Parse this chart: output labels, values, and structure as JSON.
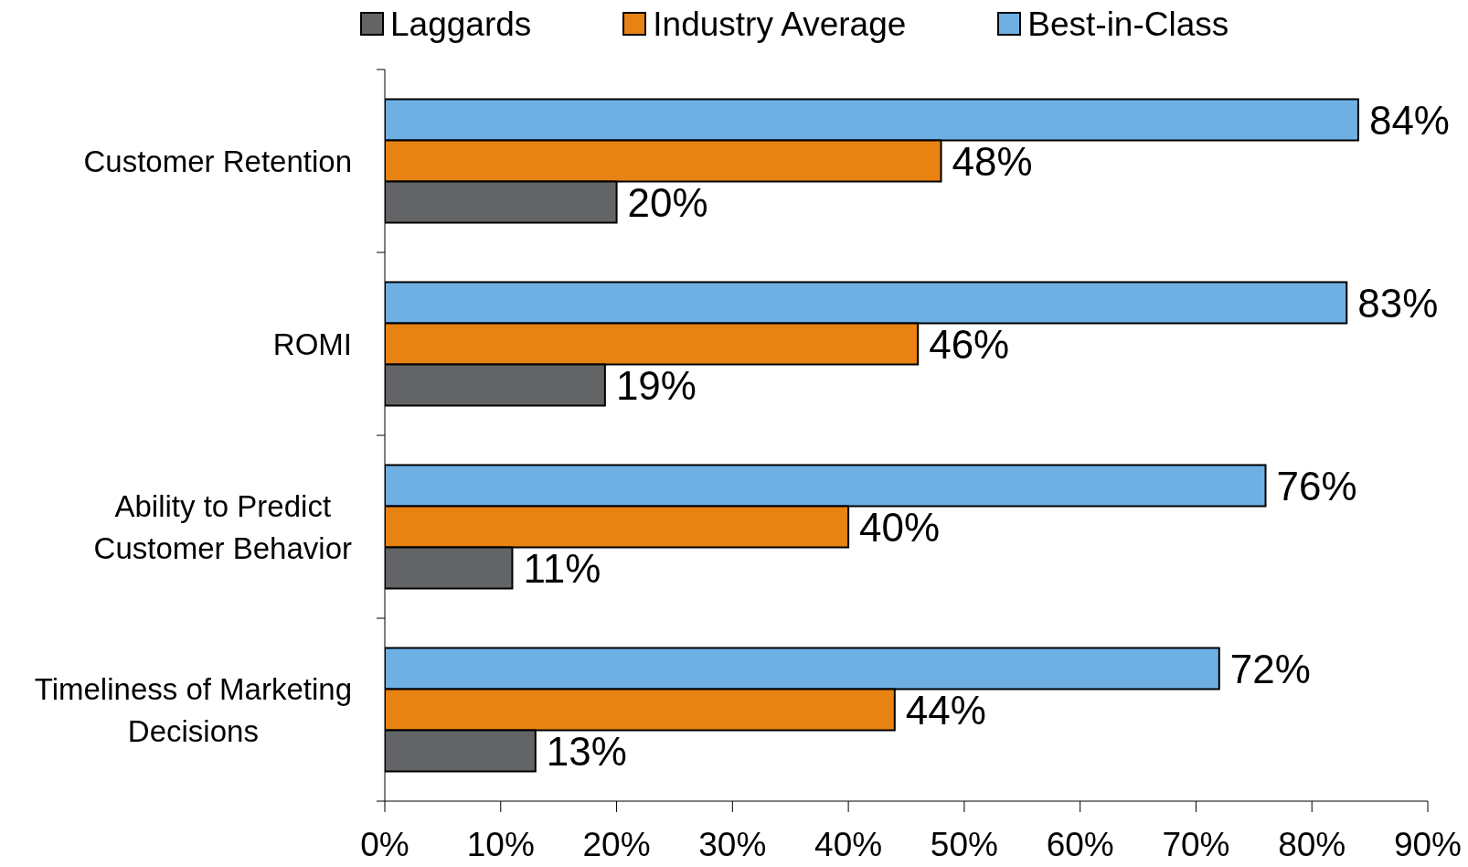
{
  "chart_data": {
    "type": "bar",
    "orientation": "horizontal",
    "legend": "top",
    "categories": [
      "Customer Retention",
      "ROMI",
      "Ability to Predict Customer Behavior",
      "Timeliness of Marketing Decisions"
    ],
    "series": [
      {
        "name": "Laggards",
        "color": "#636466",
        "values": [
          20,
          19,
          11,
          13
        ],
        "value_labels": [
          "20%",
          "19%",
          "11%",
          "13%"
        ]
      },
      {
        "name": "Industry Average",
        "color": "#e88213",
        "values": [
          48,
          46,
          40,
          44
        ],
        "value_labels": [
          "48%",
          "46%",
          "40%",
          "44%"
        ]
      },
      {
        "name": "Best-in-Class",
        "color": "#6fb0e4",
        "values": [
          84,
          83,
          76,
          72
        ],
        "value_labels": [
          "84%",
          "83%",
          "76%",
          "72%"
        ]
      }
    ],
    "xlim": [
      0,
      90
    ],
    "xticks": [
      {
        "value": 0,
        "label": "0%"
      },
      {
        "value": 10,
        "label": "10%"
      },
      {
        "value": 20,
        "label": "20%"
      },
      {
        "value": 30,
        "label": "30%"
      },
      {
        "value": 40,
        "label": "40%"
      },
      {
        "value": 50,
        "label": "50%"
      },
      {
        "value": 60,
        "label": "60%"
      },
      {
        "value": 70,
        "label": "70%"
      },
      {
        "value": 80,
        "label": "80%"
      },
      {
        "value": 90,
        "label": "90%"
      }
    ]
  }
}
